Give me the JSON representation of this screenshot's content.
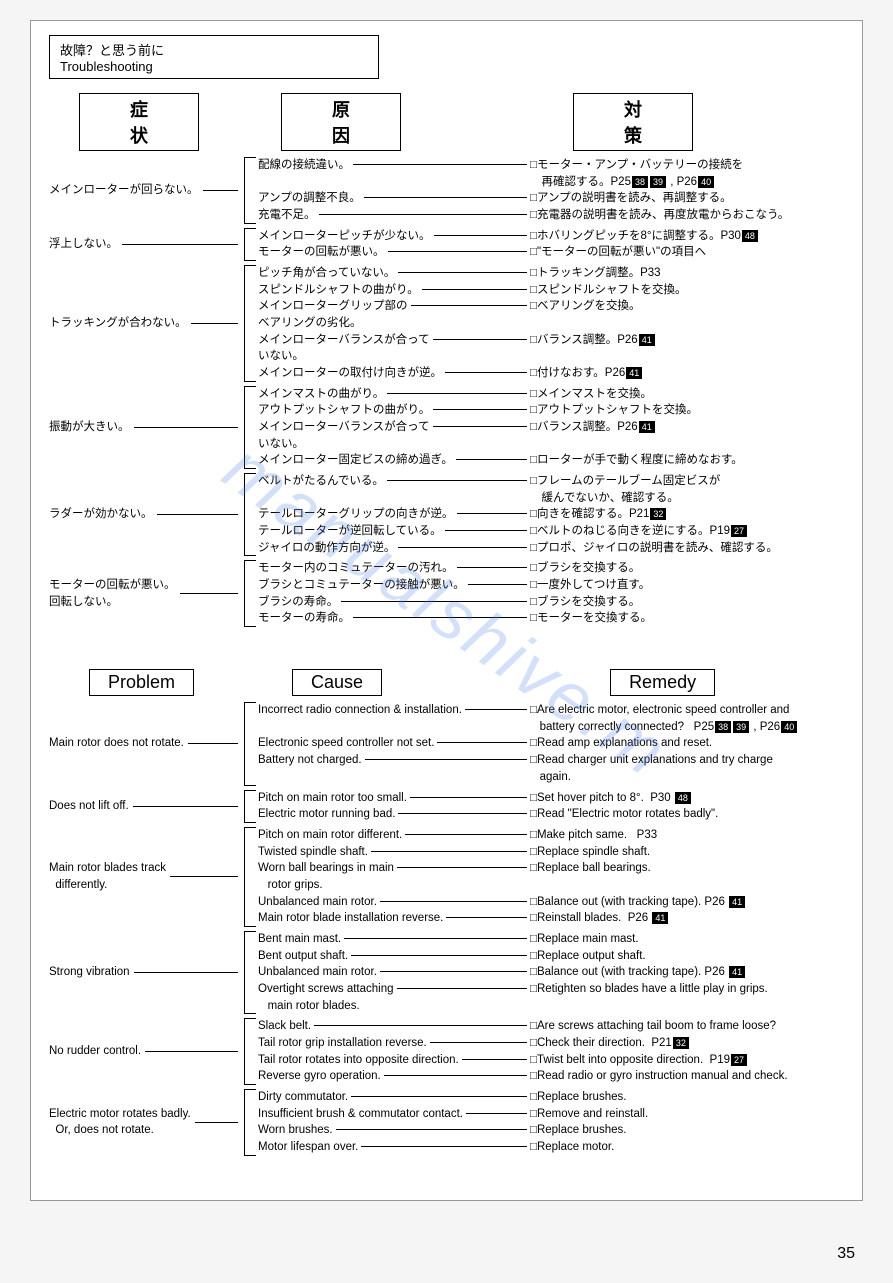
{
  "title_jp": "故障？と思う前に",
  "title_en": "Troubleshooting",
  "headers_jp": {
    "problem": "症状",
    "cause": "原因",
    "remedy": "対策"
  },
  "headers_en": {
    "problem": "Problem",
    "cause": "Cause",
    "remedy": "Remedy"
  },
  "watermark": "manualshive.m",
  "page_number": "35",
  "jp_groups": [
    {
      "symptom": "メインローターが回らない。",
      "items": [
        {
          "cause": "配線の接続違い。",
          "remedy": "□モーター・アンプ・バッテリーの接続を\n　再確認する。P25",
          "badges": [
            "38",
            "39"
          ],
          "remedy2": " , P26",
          "badges2": [
            "40"
          ]
        },
        {
          "cause": "アンプの調整不良。",
          "remedy": "□アンプの説明書を読み、再調整する。"
        },
        {
          "cause": "充電不足。",
          "remedy": "□充電器の説明書を読み、再度放電からおこなう。"
        }
      ]
    },
    {
      "symptom": "浮上しない。",
      "items": [
        {
          "cause": "メインローターピッチが少ない。",
          "remedy": "□ホバリングピッチを8°に調整する。P30",
          "badges": [
            "48"
          ]
        },
        {
          "cause": "モーターの回転が悪い。",
          "remedy": "□\"モーターの回転が悪い\"の項目へ"
        }
      ]
    },
    {
      "symptom": "トラッキングが合わない。",
      "items": [
        {
          "cause": "ピッチ角が合っていない。",
          "remedy": "□トラッキング調整。P33"
        },
        {
          "cause": "スピンドルシャフトの曲がり。",
          "remedy": "□スピンドルシャフトを交換。"
        },
        {
          "cause": "メインローターグリップ部の\nベアリングの劣化。",
          "remedy": "□ベアリングを交換。"
        },
        {
          "cause": "メインローターバランスが合って\nいない。",
          "remedy": "□バランス調整。P26",
          "badges": [
            "41"
          ]
        },
        {
          "cause": "メインローターの取付け向きが逆。",
          "remedy": "□付けなおす。P26",
          "badges": [
            "41"
          ]
        }
      ]
    },
    {
      "symptom": "振動が大きい。",
      "items": [
        {
          "cause": "メインマストの曲がり。",
          "remedy": "□メインマストを交換。"
        },
        {
          "cause": "アウトプットシャフトの曲がり。",
          "remedy": "□アウトプットシャフトを交換。"
        },
        {
          "cause": "メインローターバランスが合って\nいない。",
          "remedy": "□バランス調整。P26",
          "badges": [
            "41"
          ]
        },
        {
          "cause": "メインローター固定ビスの締め過ぎ。",
          "remedy": "□ローターが手で動く程度に締めなおす。"
        }
      ]
    },
    {
      "symptom": "ラダーが効かない。",
      "items": [
        {
          "cause": "ベルトがたるんでいる。",
          "remedy": "□フレームのテールブーム固定ビスが\n　緩んでないか、確認する。"
        },
        {
          "cause": "テールローターグリップの向きが逆。",
          "remedy": "□向きを確認する。P21",
          "badges": [
            "32"
          ]
        },
        {
          "cause": "テールローターが逆回転している。",
          "remedy": "□ベルトのねじる向きを逆にする。P19",
          "badges": [
            "27"
          ]
        },
        {
          "cause": "ジャイロの動作方向が逆。",
          "remedy": "□プロポ、ジャイロの説明書を読み、確認する。"
        }
      ]
    },
    {
      "symptom": "モーターの回転が悪い。\n回転しない。",
      "items": [
        {
          "cause": "モーター内のコミュテーターの汚れ。",
          "remedy": "□ブラシを交換する。"
        },
        {
          "cause": "ブラシとコミュテーターの接触が悪い。",
          "remedy": "□一度外してつけ直す。"
        },
        {
          "cause": "ブラシの寿命。",
          "remedy": "□ブラシを交換する。"
        },
        {
          "cause": "モーターの寿命。",
          "remedy": "□モーターを交換する。"
        }
      ]
    }
  ],
  "en_groups": [
    {
      "symptom": "Main rotor does not rotate.",
      "items": [
        {
          "cause": "Incorrect radio connection & installation.",
          "remedy": "□Are electric motor, electronic speed controller and\n   battery correctly connected?   P25",
          "badges": [
            "38",
            "39"
          ],
          "remedy2": " , P26",
          "badges2": [
            "40"
          ]
        },
        {
          "cause": "Electronic speed controller not set.",
          "remedy": "□Read amp explanations and reset."
        },
        {
          "cause": "Battery not charged.",
          "remedy": "□Read charger unit explanations and try charge\n   again."
        }
      ]
    },
    {
      "symptom": "Does not lift off.",
      "items": [
        {
          "cause": "Pitch on main rotor too small.",
          "remedy": "□Set hover pitch to 8°.  P30 ",
          "badges": [
            "48"
          ]
        },
        {
          "cause": "Electric motor running bad.",
          "remedy": "□Read \"Electric motor rotates badly\"."
        }
      ]
    },
    {
      "symptom": "Main rotor blades track\n  differently.",
      "items": [
        {
          "cause": "Pitch on main rotor different.",
          "remedy": "□Make pitch same.   P33"
        },
        {
          "cause": "Twisted spindle shaft.",
          "remedy": "□Replace spindle shaft."
        },
        {
          "cause": "Worn ball bearings in main\n   rotor grips.",
          "remedy": "□Replace ball bearings."
        },
        {
          "cause": "Unbalanced main rotor.",
          "remedy": "□Balance out (with tracking tape). P26 ",
          "badges": [
            "41"
          ]
        },
        {
          "cause": "Main rotor blade installation reverse.",
          "remedy": "□Reinstall blades.  P26 ",
          "badges": [
            "41"
          ]
        }
      ]
    },
    {
      "symptom": "Strong vibration",
      "items": [
        {
          "cause": "Bent main mast.",
          "remedy": "□Replace main mast."
        },
        {
          "cause": "Bent output shaft.",
          "remedy": "□Replace output shaft."
        },
        {
          "cause": "Unbalanced main rotor.",
          "remedy": "□Balance out (with tracking tape). P26 ",
          "badges": [
            "41"
          ]
        },
        {
          "cause": "Overtight screws attaching\n   main rotor blades.",
          "remedy": "□Retighten so blades have a little play in grips."
        }
      ]
    },
    {
      "symptom": "No rudder control.",
      "items": [
        {
          "cause": "Slack belt.",
          "remedy": "□Are screws attaching tail boom to frame loose?"
        },
        {
          "cause": "Tail rotor grip installation reverse.",
          "remedy": "□Check their direction.  P21",
          "badges": [
            "32"
          ]
        },
        {
          "cause": "Tail rotor rotates into opposite direction.",
          "remedy": "□Twist belt into opposite direction.  P19",
          "badges": [
            "27"
          ]
        },
        {
          "cause": "Reverse gyro operation.",
          "remedy": "□Read radio or gyro instruction manual and check."
        }
      ]
    },
    {
      "symptom": "Electric motor rotates badly.\n  Or, does not rotate.",
      "items": [
        {
          "cause": "Dirty commutator.",
          "remedy": "□Replace brushes."
        },
        {
          "cause": "Insufficient brush & commutator contact.",
          "remedy": "□Remove and reinstall."
        },
        {
          "cause": "Worn brushes.",
          "remedy": "□Replace brushes."
        },
        {
          "cause": "Motor lifespan over.",
          "remedy": "□Replace motor."
        }
      ]
    }
  ]
}
